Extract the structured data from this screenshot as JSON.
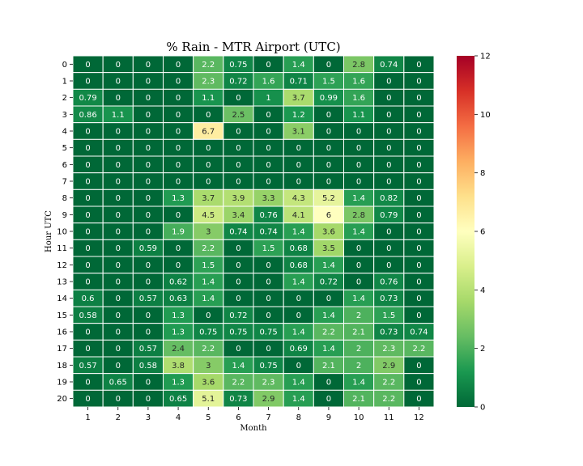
{
  "chart_data": {
    "type": "heatmap",
    "title": "% Rain - MTR Airport (UTC)",
    "xlabel": "Month",
    "ylabel": "Hour UTC",
    "x_categories": [
      "1",
      "2",
      "3",
      "4",
      "5",
      "6",
      "7",
      "8",
      "9",
      "10",
      "11",
      "12"
    ],
    "y_categories": [
      "0",
      "1",
      "2",
      "3",
      "4",
      "5",
      "6",
      "7",
      "8",
      "9",
      "10",
      "11",
      "12",
      "13",
      "14",
      "15",
      "16",
      "17",
      "18",
      "19",
      "20"
    ],
    "values": [
      [
        0,
        0,
        0,
        0,
        2.2,
        0.75,
        0,
        1.4,
        0,
        2.8,
        0.74,
        0
      ],
      [
        0,
        0,
        0,
        0,
        2.3,
        0.72,
        1.6,
        0.71,
        1.5,
        1.6,
        0,
        0
      ],
      [
        0.79,
        0,
        0,
        0,
        1.1,
        0,
        1,
        3.7,
        0.99,
        1.6,
        0,
        0
      ],
      [
        0.86,
        1.1,
        0,
        0,
        0,
        2.5,
        0,
        1.2,
        0,
        1.1,
        0,
        0
      ],
      [
        0,
        0,
        0,
        0,
        6.7,
        0,
        0,
        3.1,
        0,
        0,
        0,
        0
      ],
      [
        0,
        0,
        0,
        0,
        0,
        0,
        0,
        0,
        0,
        0,
        0,
        0
      ],
      [
        0,
        0,
        0,
        0,
        0,
        0,
        0,
        0,
        0,
        0,
        0,
        0
      ],
      [
        0,
        0,
        0,
        0,
        0,
        0,
        0,
        0,
        0,
        0,
        0,
        0
      ],
      [
        0,
        0,
        0,
        1.3,
        3.7,
        3.9,
        3.3,
        4.3,
        5.2,
        1.4,
        0.82,
        0
      ],
      [
        0,
        0,
        0,
        0,
        4.5,
        3.4,
        0.76,
        4.1,
        6,
        2.8,
        0.79,
        0
      ],
      [
        0,
        0,
        0,
        1.9,
        3,
        0.74,
        0.74,
        1.4,
        3.6,
        1.4,
        0,
        0
      ],
      [
        0,
        0,
        0.59,
        0,
        2.2,
        0,
        1.5,
        0.68,
        3.5,
        0,
        0,
        0
      ],
      [
        0,
        0,
        0,
        0,
        1.5,
        0,
        0,
        0.68,
        1.4,
        0,
        0,
        0
      ],
      [
        0,
        0,
        0,
        0.62,
        1.4,
        0,
        0,
        1.4,
        0.72,
        0,
        0.76,
        0
      ],
      [
        0.6,
        0,
        0.57,
        0.63,
        1.4,
        0,
        0,
        0,
        0,
        1.4,
        0.73,
        0
      ],
      [
        0.58,
        0,
        0,
        1.3,
        0,
        0.72,
        0,
        0,
        1.4,
        2,
        1.5,
        0
      ],
      [
        0,
        0,
        0,
        1.3,
        0.75,
        0.75,
        0.75,
        1.4,
        2.2,
        2.1,
        0.73,
        0.74
      ],
      [
        0,
        0,
        0.57,
        2.4,
        2.2,
        0,
        0,
        0.69,
        1.4,
        2,
        2.3,
        2.2
      ],
      [
        0.57,
        0,
        0.58,
        3.8,
        3,
        1.4,
        0.75,
        0,
        2.1,
        2,
        2.9,
        0
      ],
      [
        0,
        0.65,
        0,
        1.3,
        3.6,
        2.2,
        2.3,
        1.4,
        0,
        1.4,
        2.2,
        0
      ],
      [
        0,
        0,
        0,
        0.65,
        5.1,
        0.73,
        2.9,
        1.4,
        0,
        2.1,
        2.2,
        0
      ]
    ],
    "colorbar": {
      "colormap": "RdYlGn_r",
      "vmin": 0,
      "vmax": 12,
      "ticks": [
        "0",
        "2",
        "4",
        "6",
        "8",
        "10",
        "12"
      ]
    },
    "grid": false
  }
}
